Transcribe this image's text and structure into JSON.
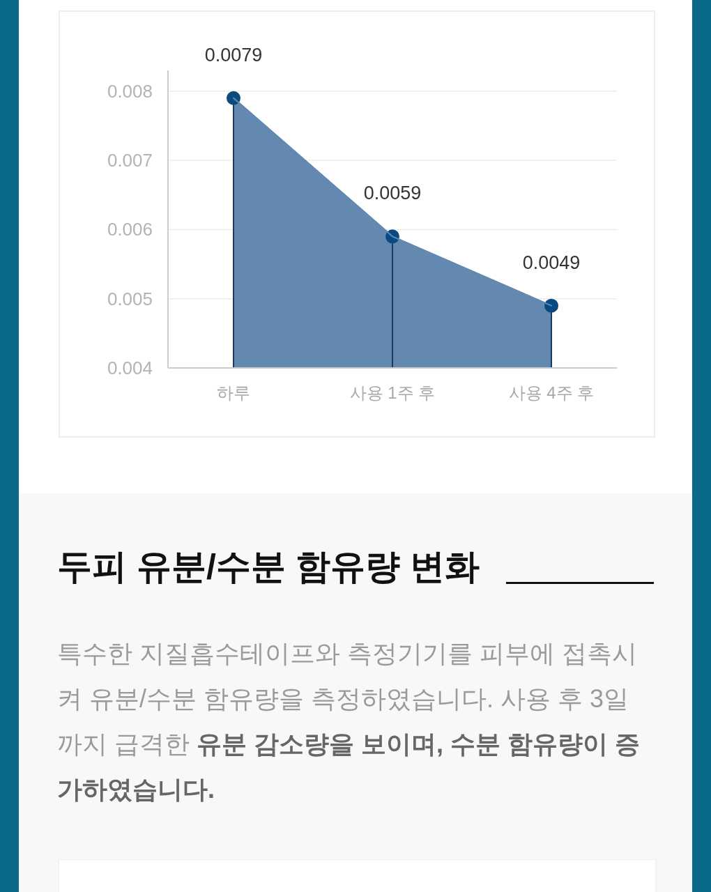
{
  "chart_data": {
    "type": "area",
    "categories": [
      "하루",
      "사용 1주 후",
      "사용 4주 후"
    ],
    "values": [
      0.0079,
      0.0059,
      0.0049
    ],
    "color": "#6389b0",
    "ref_lines": [
      {
        "axis": "x",
        "value": "하루",
        "color": "#1b3a5c"
      },
      {
        "axis": "x",
        "value": "사용 1주 후",
        "color": "#1b3a5c"
      },
      {
        "axis": "x",
        "value": "사용 4주 후",
        "color": "#1b3a5c"
      }
    ],
    "ylim": [
      0.004,
      0.0083
    ],
    "yticks": [
      0.004,
      0.005,
      0.006,
      0.007,
      0.008
    ],
    "grid": "y",
    "marker": "circle",
    "data_labels": true,
    "annotations": [
      "두피 유분/수분 함유량 변화",
      "특수한 지질흡수테이프와 측정기기를 피부에 접촉시켜 유분/수분 함유량을 측정하였습니다. 사용 후 3일까지 급격한 ",
      "유분 감소량을 보이며, 수분 함유량이 증가하였습니다."
    ]
  }
}
